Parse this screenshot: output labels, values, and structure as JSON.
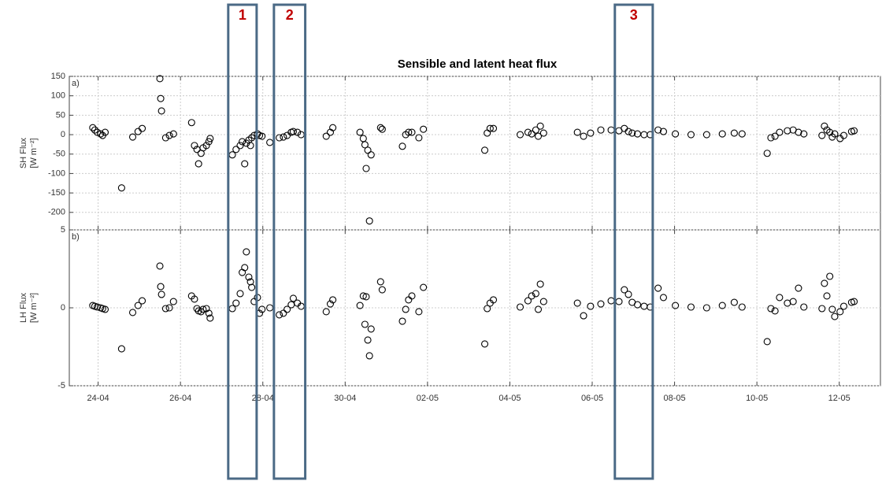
{
  "chart_data": [
    {
      "type": "scatter",
      "title": "Sensible and latent heat flux",
      "panel_label": "a)",
      "ylabel": [
        "SH Flux",
        "[W m⁻²]"
      ],
      "x": [
        113.87,
        113.92,
        113.98,
        114.06,
        114.11,
        114.17,
        114.57,
        114.84,
        114.97,
        115.07,
        115.5,
        115.52,
        115.54,
        115.64,
        115.73,
        115.83,
        116.27,
        116.34,
        116.4,
        116.44,
        116.5,
        116.55,
        116.63,
        116.69,
        116.72,
        117.26,
        117.35,
        117.45,
        117.5,
        117.56,
        117.6,
        117.66,
        117.7,
        117.73,
        117.79,
        117.87,
        117.92,
        117.98,
        118.17,
        118.4,
        118.5,
        118.59,
        118.69,
        118.74,
        118.84,
        118.93,
        119.54,
        119.64,
        119.7,
        120.36,
        120.44,
        120.48,
        120.51,
        120.55,
        120.59,
        120.63,
        120.86,
        120.9,
        121.39,
        121.47,
        121.54,
        121.62,
        121.79,
        121.9,
        123.39,
        123.45,
        123.52,
        123.6,
        124.25,
        124.44,
        124.53,
        124.63,
        124.69,
        124.74,
        124.82,
        125.64,
        125.79,
        125.96,
        126.21,
        126.46,
        126.65,
        126.78,
        126.88,
        126.97,
        127.1,
        127.26,
        127.41,
        127.6,
        127.73,
        128.02,
        128.4,
        128.78,
        129.16,
        129.45,
        129.64,
        130.25,
        130.34,
        130.44,
        130.55,
        130.74,
        130.88,
        131.01,
        131.14,
        131.58,
        131.64,
        131.7,
        131.77,
        131.83,
        131.89,
        132.02,
        132.11,
        132.3,
        132.36
      ],
      "values": [
        18,
        12,
        6,
        2,
        -2,
        6,
        -137,
        -6,
        8,
        16,
        144,
        93,
        61,
        -8,
        -2,
        2,
        31,
        -28,
        -38,
        -75,
        -48,
        -34,
        -28,
        -18,
        -10,
        -52,
        -38,
        -28,
        -18,
        -75,
        -22,
        -14,
        -28,
        -8,
        -2,
        2,
        -2,
        -4,
        -20,
        -8,
        -6,
        -2,
        6,
        8,
        6,
        0,
        -4,
        6,
        18,
        6,
        -10,
        -26,
        -87,
        -40,
        -222,
        -52,
        18,
        14,
        -30,
        0,
        6,
        6,
        -8,
        14,
        -40,
        4,
        16,
        16,
        0,
        6,
        2,
        12,
        -4,
        22,
        4,
        6,
        -4,
        4,
        12,
        12,
        10,
        16,
        8,
        4,
        2,
        0,
        0,
        12,
        8,
        2,
        0,
        0,
        2,
        4,
        2,
        -48,
        -8,
        -4,
        6,
        10,
        12,
        6,
        2,
        -2,
        22,
        12,
        6,
        -6,
        2,
        -10,
        -2,
        8,
        10
      ],
      "color": "#000000",
      "xlim": [
        113.3,
        133
      ],
      "ylim": [
        -245,
        150
      ],
      "yticks": [
        -200,
        -150,
        -100,
        -50,
        0,
        50,
        100,
        150
      ],
      "xticks": [
        {
          "value": 114,
          "label": "24-04"
        },
        {
          "value": 116,
          "label": "26-04"
        },
        {
          "value": 118,
          "label": "28-04"
        },
        {
          "value": 120,
          "label": "30-04"
        },
        {
          "value": 122,
          "label": "02-05"
        },
        {
          "value": 124,
          "label": "04-05"
        },
        {
          "value": 126,
          "label": "06-05"
        },
        {
          "value": 128,
          "label": "08-05"
        },
        {
          "value": 130,
          "label": "10-05"
        },
        {
          "value": 132,
          "label": "12-05"
        }
      ],
      "grid": true
    },
    {
      "type": "scatter",
      "panel_label": "b)",
      "ylabel": [
        "LH Flux",
        "[W m⁻²]"
      ],
      "x": [
        113.87,
        113.92,
        113.98,
        114.06,
        114.11,
        114.17,
        114.57,
        114.84,
        114.97,
        115.07,
        115.5,
        115.52,
        115.54,
        115.64,
        115.73,
        115.83,
        116.27,
        116.34,
        116.4,
        116.44,
        116.5,
        116.55,
        116.63,
        116.69,
        116.72,
        117.26,
        117.35,
        117.45,
        117.5,
        117.56,
        117.6,
        117.66,
        117.7,
        117.73,
        117.79,
        117.87,
        117.92,
        117.98,
        118.17,
        118.4,
        118.5,
        118.59,
        118.69,
        118.74,
        118.84,
        118.93,
        119.54,
        119.64,
        119.7,
        120.36,
        120.44,
        120.48,
        120.51,
        120.55,
        120.59,
        120.63,
        120.86,
        120.9,
        121.39,
        121.47,
        121.54,
        121.62,
        121.79,
        121.9,
        123.39,
        123.45,
        123.52,
        123.6,
        124.25,
        124.44,
        124.53,
        124.63,
        124.69,
        124.74,
        124.82,
        125.64,
        125.79,
        125.96,
        126.21,
        126.46,
        126.65,
        126.78,
        126.88,
        126.97,
        127.1,
        127.26,
        127.41,
        127.6,
        127.73,
        128.02,
        128.4,
        128.78,
        129.16,
        129.45,
        129.64,
        130.25,
        130.34,
        130.44,
        130.55,
        130.74,
        130.88,
        131.01,
        131.14,
        131.58,
        131.64,
        131.7,
        131.77,
        131.83,
        131.89,
        132.02,
        132.11,
        132.3,
        132.36
      ],
      "values": [
        0.15,
        0.1,
        0.05,
        0,
        -0.05,
        -0.1,
        -2.63,
        -0.3,
        0.15,
        0.45,
        2.68,
        1.36,
        0.86,
        -0.05,
        0,
        0.4,
        0.76,
        0.56,
        -0.05,
        -0.2,
        -0.25,
        -0.1,
        -0.05,
        -0.35,
        -0.66,
        -0.05,
        0.3,
        0.91,
        2.27,
        2.58,
        3.59,
        1.97,
        1.67,
        1.31,
        0.4,
        0.66,
        -0.35,
        -0.1,
        0,
        -0.45,
        -0.35,
        -0.1,
        0.2,
        0.61,
        0.3,
        0.1,
        -0.25,
        0.25,
        0.51,
        0.15,
        0.76,
        -1.06,
        0.71,
        -2.07,
        -3.08,
        -1.36,
        1.67,
        1.16,
        -0.86,
        -0.1,
        0.51,
        0.76,
        -0.25,
        1.31,
        -2.32,
        -0.05,
        0.3,
        0.51,
        0.05,
        0.45,
        0.76,
        0.91,
        -0.1,
        1.52,
        0.4,
        0.3,
        -0.51,
        0.1,
        0.25,
        0.45,
        0.4,
        1.16,
        0.86,
        0.35,
        0.2,
        0.1,
        0.05,
        1.26,
        0.66,
        0.15,
        0.05,
        0,
        0.15,
        0.35,
        0.05,
        -2.17,
        -0.05,
        -0.2,
        0.66,
        0.3,
        0.4,
        1.26,
        0.05,
        -0.05,
        1.57,
        0.76,
        2.02,
        -0.1,
        -0.56,
        -0.25,
        0.1,
        0.35,
        0.4
      ],
      "color": "#000000",
      "xlim": [
        113.3,
        133
      ],
      "ylim": [
        -5,
        5
      ],
      "yticks": [
        -5,
        0,
        5
      ],
      "xticks": [
        {
          "value": 114,
          "label": "24-04"
        },
        {
          "value": 116,
          "label": "26-04"
        },
        {
          "value": 118,
          "label": "28-04"
        },
        {
          "value": 120,
          "label": "30-04"
        },
        {
          "value": 122,
          "label": "02-05"
        },
        {
          "value": 124,
          "label": "04-05"
        },
        {
          "value": 126,
          "label": "06-05"
        },
        {
          "value": 128,
          "label": "08-05"
        },
        {
          "value": 130,
          "label": "10-05"
        },
        {
          "value": 132,
          "label": "12-05"
        }
      ],
      "grid": true
    }
  ],
  "highlights": [
    {
      "label": "1",
      "xlim": [
        117.16,
        117.85
      ]
    },
    {
      "label": "2",
      "xlim": [
        118.27,
        119.03
      ]
    },
    {
      "label": "3",
      "xlim": [
        126.55,
        127.47
      ]
    }
  ]
}
